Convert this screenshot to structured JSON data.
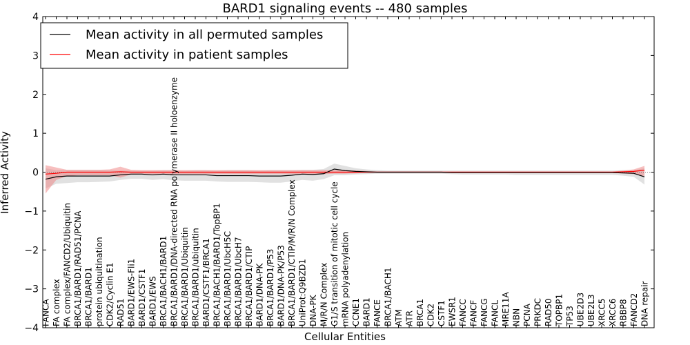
{
  "chart_data": {
    "type": "line",
    "title": "BARD1 signaling events -- 480 samples",
    "xlabel": "Cellular Entities",
    "ylabel": "Inferred Activity",
    "ylim": [
      -4,
      4
    ],
    "yticks": [
      -4,
      -3,
      -2,
      -1,
      0,
      1,
      2,
      3,
      4
    ],
    "ytick_labels": [
      "−4",
      "−3",
      "−2",
      "−1",
      "0",
      "1",
      "2",
      "3",
      "4"
    ],
    "grid": false,
    "legend_position": "top-left",
    "categories": [
      "FANCA",
      "FA complex",
      "FA complex/FANCD2/Ubiquitin",
      "BRCA1/BARD1/RAD51/PCNA",
      "BRCA1/BARD1",
      "protein ubiquitination",
      "CDK2/Cyclin E1",
      "RAD51",
      "BARD1/EWS-Fli1",
      "BARD1/CSTF1",
      "BARD1/EWS",
      "BRCA1/BACH1/BARD1",
      "BRCA1/BARD1/DNA-directed RNA polymerase II holoenzyme",
      "BRCA1/BARD1/Ubiquitin",
      "BRCA1/BARD1/ubiquitin",
      "BARD1/CSTF1/BRCA1",
      "BRCA1/BACH1/BARD1/TopBP1",
      "BRCA1/BARD1/UbcH5C",
      "BRCA1/BARD1/UbcH7",
      "BRCA1/BARD1/CTIP",
      "BARD1/DNA-PK",
      "BRCA1/BARD1/P53",
      "BARD1/DNA-PK/P53",
      "BRCA1/BARD1/CTIP/M/R/N Complex",
      "UniProt:Q9BZD1",
      "DNA-PK",
      "M/R/N Complex",
      "G1/S transition of mitotic cell cycle",
      "mRNA polyadenylation",
      "CCNE1",
      "BARD1",
      "FANCE",
      "BRCA1/BACH1",
      "ATM",
      "ATR",
      "BRCA1",
      "CDK2",
      "CSTF1",
      "EWSR1",
      "FANCC",
      "FANCF",
      "FANCG",
      "FANCL",
      "MRE11A",
      "NBN",
      "PCNA",
      "PRKDC",
      "RAD50",
      "TOPBP1",
      "TP53",
      "UBE2D3",
      "UBE2L3",
      "XRCC5",
      "XRCC6",
      "RBBP8",
      "FANCD2",
      "DNA repair"
    ],
    "series": [
      {
        "name": "Mean activity in all permuted samples",
        "color": "#000000",
        "values": [
          -0.18,
          -0.12,
          -0.1,
          -0.1,
          -0.1,
          -0.1,
          -0.1,
          -0.07,
          -0.05,
          -0.05,
          -0.07,
          -0.05,
          -0.07,
          -0.07,
          -0.07,
          -0.07,
          -0.09,
          -0.09,
          -0.09,
          -0.09,
          -0.1,
          -0.1,
          -0.1,
          -0.08,
          -0.05,
          -0.06,
          -0.04,
          0.08,
          0.04,
          0.02,
          0.01,
          0.0,
          0.0,
          0.0,
          0.0,
          0.0,
          0.0,
          0.0,
          -0.01,
          -0.01,
          -0.01,
          -0.01,
          -0.01,
          -0.01,
          -0.01,
          -0.01,
          -0.01,
          -0.01,
          -0.01,
          -0.01,
          -0.01,
          -0.01,
          -0.01,
          -0.01,
          -0.02,
          -0.03,
          -0.12
        ],
        "band_low": [
          -0.42,
          -0.3,
          -0.28,
          -0.26,
          -0.26,
          -0.25,
          -0.24,
          -0.2,
          -0.17,
          -0.17,
          -0.2,
          -0.18,
          -0.21,
          -0.22,
          -0.22,
          -0.22,
          -0.24,
          -0.25,
          -0.25,
          -0.25,
          -0.26,
          -0.27,
          -0.27,
          -0.24,
          -0.2,
          -0.22,
          -0.18,
          -0.08,
          -0.08,
          -0.06,
          -0.05,
          -0.04,
          -0.04,
          -0.04,
          -0.04,
          -0.04,
          -0.04,
          -0.04,
          -0.05,
          -0.06,
          -0.06,
          -0.06,
          -0.06,
          -0.06,
          -0.07,
          -0.07,
          -0.07,
          -0.07,
          -0.07,
          -0.07,
          -0.07,
          -0.07,
          -0.07,
          -0.07,
          -0.09,
          -0.12,
          -0.32
        ],
        "band_high": [
          0.1,
          0.05,
          0.06,
          0.06,
          0.06,
          0.06,
          0.05,
          0.04,
          0.04,
          0.04,
          0.04,
          0.05,
          0.05,
          0.04,
          0.05,
          0.05,
          0.04,
          0.05,
          0.05,
          0.05,
          0.04,
          0.05,
          0.05,
          0.05,
          0.06,
          0.06,
          0.08,
          0.22,
          0.16,
          0.1,
          0.07,
          0.05,
          0.04,
          0.04,
          0.04,
          0.04,
          0.04,
          0.04,
          0.04,
          0.04,
          0.04,
          0.04,
          0.04,
          0.04,
          0.04,
          0.04,
          0.04,
          0.04,
          0.04,
          0.04,
          0.04,
          0.04,
          0.04,
          0.04,
          0.05,
          0.05,
          0.1
        ]
      },
      {
        "name": "Mean activity in patient samples",
        "color": "#ff0000",
        "values": [
          -0.05,
          -0.03,
          0.0,
          0.0,
          0.0,
          0.0,
          0.0,
          0.01,
          0.0,
          0.0,
          0.0,
          0.0,
          0.0,
          0.0,
          0.0,
          0.0,
          0.0,
          0.0,
          0.0,
          0.0,
          0.0,
          0.0,
          0.0,
          0.0,
          0.0,
          0.0,
          0.0,
          0.0,
          0.0,
          0.0,
          0.0,
          0.0,
          0.0,
          0.0,
          0.0,
          0.0,
          0.0,
          0.0,
          0.0,
          0.0,
          0.0,
          0.0,
          0.0,
          0.0,
          0.0,
          0.0,
          0.0,
          0.0,
          0.0,
          0.0,
          0.0,
          0.0,
          0.0,
          0.0,
          0.01,
          0.02,
          0.05
        ],
        "band_low": [
          -0.55,
          -0.2,
          -0.1,
          -0.08,
          -0.08,
          -0.08,
          -0.08,
          -0.14,
          -0.06,
          -0.05,
          -0.05,
          -0.05,
          -0.05,
          -0.05,
          -0.05,
          -0.05,
          -0.05,
          -0.05,
          -0.05,
          -0.05,
          -0.05,
          -0.05,
          -0.05,
          -0.05,
          -0.05,
          -0.05,
          -0.05,
          -0.04,
          -0.04,
          -0.03,
          -0.02,
          -0.02,
          -0.02,
          -0.02,
          -0.02,
          -0.02,
          -0.02,
          -0.02,
          -0.02,
          -0.02,
          -0.02,
          -0.02,
          -0.02,
          -0.02,
          -0.02,
          -0.02,
          -0.02,
          -0.02,
          -0.02,
          -0.02,
          -0.02,
          -0.02,
          -0.02,
          -0.02,
          -0.03,
          -0.05,
          -0.1
        ],
        "band_high": [
          0.18,
          0.12,
          0.06,
          0.06,
          0.06,
          0.06,
          0.07,
          0.14,
          0.06,
          0.05,
          0.05,
          0.05,
          0.05,
          0.05,
          0.05,
          0.05,
          0.05,
          0.05,
          0.05,
          0.05,
          0.05,
          0.05,
          0.05,
          0.05,
          0.05,
          0.05,
          0.05,
          0.05,
          0.05,
          0.04,
          0.03,
          0.02,
          0.02,
          0.02,
          0.02,
          0.02,
          0.02,
          0.02,
          0.02,
          0.02,
          0.02,
          0.02,
          0.02,
          0.02,
          0.02,
          0.02,
          0.02,
          0.02,
          0.02,
          0.02,
          0.02,
          0.02,
          0.02,
          0.02,
          0.04,
          0.07,
          0.16
        ]
      }
    ],
    "band_colors": {
      "permuted": "#c8c8c8",
      "patient": "#f08080"
    }
  }
}
